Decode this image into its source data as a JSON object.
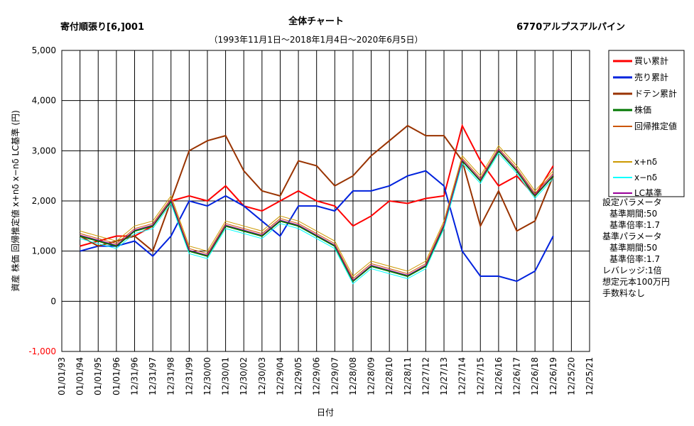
{
  "chart_data": {
    "type": "line",
    "title": "全体チャート",
    "subtitle": "（1993年11月1日～2018年1月4日～2020年6月5日）",
    "left_title": "寄付順張り[6,]001",
    "right_title": "6770アルプスアルパイン",
    "y_label": "資産 株価 回帰推定値 x+nδ x−nδ LC基準 (円)",
    "x_label": "日付",
    "notes": [
      "設定パラメータ",
      "基準期間:50",
      "基準倍率:1.7",
      "基準パラメータ",
      "基準期間:50",
      "基準倍率:1.7",
      "レバレッジ:1倍",
      "想定元本100万円",
      "手数料なし"
    ],
    "x": [
      "01/01/93",
      "01/01/94",
      "01/01/95",
      "01/01/96",
      "12/31/96",
      "12/31/97",
      "12/31/98",
      "12/31/99",
      "12/30/00",
      "12/30/01",
      "12/30/02",
      "12/30/03",
      "12/29/04",
      "12/29/05",
      "12/29/06",
      "12/29/07",
      "12/28/08",
      "12/28/09",
      "12/28/10",
      "12/28/11",
      "12/27/12",
      "12/27/13",
      "12/27/14",
      "12/27/15",
      "12/26/16",
      "12/26/17",
      "12/26/18",
      "12/26/19",
      "12/25/20",
      "12/25/21"
    ],
    "ylim": [
      -1000,
      5000
    ],
    "yticks": [
      {
        "value": 5000,
        "label": "5,000"
      },
      {
        "value": 4000,
        "label": "4,000"
      },
      {
        "value": 3000,
        "label": "3,000"
      },
      {
        "value": 2000,
        "label": "2,000"
      },
      {
        "value": 1000,
        "label": "1,000"
      },
      0,
      {
        "value": -1000,
        "label": "-1,000",
        "color": "#ff0000"
      }
    ],
    "grid": true,
    "series": [
      {
        "name": "買い累計",
        "color": "#ff0000",
        "width": 2,
        "values": [
          null,
          1100,
          1200,
          1300,
          1300,
          1500,
          2000,
          2100,
          2000,
          2300,
          1900,
          1800,
          2000,
          2200,
          2000,
          1900,
          1500,
          1700,
          2000,
          1950,
          2050,
          2100,
          3500,
          2800,
          2300,
          2500,
          2100,
          2700,
          null,
          null
        ]
      },
      {
        "name": "売り累計",
        "color": "#0022dd",
        "width": 2,
        "values": [
          null,
          1000,
          1100,
          1100,
          1200,
          900,
          1300,
          2000,
          1900,
          2100,
          1900,
          1600,
          1300,
          1900,
          1900,
          1800,
          2200,
          2200,
          2300,
          2500,
          2600,
          2300,
          1000,
          500,
          500,
          400,
          600,
          1300,
          null,
          null
        ]
      },
      {
        "name": "ドテン累計",
        "color": "#993300",
        "width": 2,
        "values": [
          null,
          1300,
          1100,
          1200,
          1300,
          1000,
          2000,
          3000,
          3200,
          3300,
          2600,
          2200,
          2100,
          2800,
          2700,
          2300,
          2500,
          2900,
          3200,
          3500,
          3300,
          3300,
          2800,
          1500,
          2200,
          1400,
          1600,
          2500,
          null,
          null
        ]
      },
      {
        "name": "株価",
        "color": "#007700",
        "width": 2,
        "values": [
          null,
          1300,
          1200,
          1100,
          1400,
          1500,
          2000,
          1000,
          900,
          1500,
          1400,
          1300,
          1600,
          1500,
          1300,
          1100,
          400,
          700,
          600,
          500,
          700,
          1500,
          2800,
          2400,
          3000,
          2600,
          2100,
          2500,
          null,
          null
        ]
      },
      {
        "name": "回帰推定値",
        "color": "#cc5500",
        "width": 1,
        "values": [
          null,
          1350,
          1250,
          1150,
          1450,
          1550,
          2050,
          1050,
          950,
          1550,
          1450,
          1350,
          1650,
          1550,
          1350,
          1150,
          450,
          750,
          650,
          550,
          750,
          1550,
          2850,
          2450,
          3050,
          2650,
          2150,
          2550,
          null,
          null
        ]
      },
      {
        "name": "x+nδ",
        "color": "#cc9900",
        "width": 1,
        "values": [
          null,
          1400,
          1300,
          1200,
          1500,
          1600,
          2100,
          1100,
          1000,
          1600,
          1500,
          1400,
          1700,
          1600,
          1400,
          1200,
          500,
          800,
          700,
          600,
          800,
          1600,
          2900,
          2500,
          3100,
          2700,
          2200,
          2600,
          null,
          null
        ]
      },
      {
        "name": "x−nδ",
        "color": "#00ffff",
        "width": 1,
        "values": [
          null,
          1250,
          1150,
          1050,
          1350,
          1450,
          1950,
          950,
          850,
          1450,
          1350,
          1250,
          1550,
          1450,
          1250,
          1050,
          350,
          650,
          550,
          450,
          650,
          1450,
          2750,
          2350,
          2950,
          2550,
          2050,
          2450,
          null,
          null
        ]
      },
      {
        "name": "LC基準",
        "color": "#990099",
        "width": 1,
        "values": [
          null,
          1320,
          1220,
          1120,
          1420,
          1520,
          2020,
          1020,
          920,
          1520,
          1420,
          1320,
          1620,
          1520,
          1320,
          1120,
          420,
          720,
          620,
          520,
          720,
          1520,
          2820,
          2420,
          3020,
          2620,
          2120,
          2520,
          null,
          null
        ]
      }
    ]
  }
}
